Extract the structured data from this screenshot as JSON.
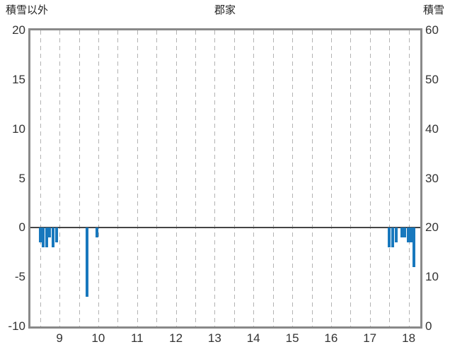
{
  "chart_data": {
    "type": "bar",
    "title": "郡家",
    "left_axis": {
      "label": "積雪以外",
      "min": -10,
      "max": 20,
      "ticks": [
        20,
        15,
        10,
        5,
        0,
        -5,
        -10
      ]
    },
    "right_axis": {
      "label": "積雪",
      "min": 0,
      "max": 60,
      "ticks": [
        60,
        50,
        40,
        30,
        20,
        10,
        0
      ]
    },
    "x_axis": {
      "min_hour": 8.25,
      "max_hour": 18.3,
      "tick_hours": [
        9,
        10,
        11,
        12,
        13,
        14,
        15,
        16,
        17,
        18
      ],
      "gridline_interval_hours": 0.5
    },
    "grid": "vertical-dashed",
    "legend_position": "none",
    "series": [
      {
        "name": "積雪以外",
        "color": "#1878bd",
        "points": [
          {
            "hour": 8.5,
            "value": -1.5
          },
          {
            "hour": 8.58,
            "value": -2
          },
          {
            "hour": 8.67,
            "value": -2
          },
          {
            "hour": 8.75,
            "value": -1
          },
          {
            "hour": 8.83,
            "value": -2
          },
          {
            "hour": 8.92,
            "value": -1.5
          },
          {
            "hour": 9.7,
            "value": -7
          },
          {
            "hour": 9.97,
            "value": -1
          },
          {
            "hour": 17.5,
            "value": -2
          },
          {
            "hour": 17.58,
            "value": -2
          },
          {
            "hour": 17.67,
            "value": -1.5
          },
          {
            "hour": 17.82,
            "value": -1
          },
          {
            "hour": 17.9,
            "value": -1
          },
          {
            "hour": 17.98,
            "value": -1.5
          },
          {
            "hour": 18.07,
            "value": -1.5
          },
          {
            "hour": 18.13,
            "value": -4
          }
        ]
      }
    ],
    "colors": {
      "bar": "#1878bd",
      "plot_border": "#898989",
      "gridline": "#b3b3b3",
      "zero_line": "#444444",
      "text": "#333333",
      "background": "#ffffff"
    }
  }
}
